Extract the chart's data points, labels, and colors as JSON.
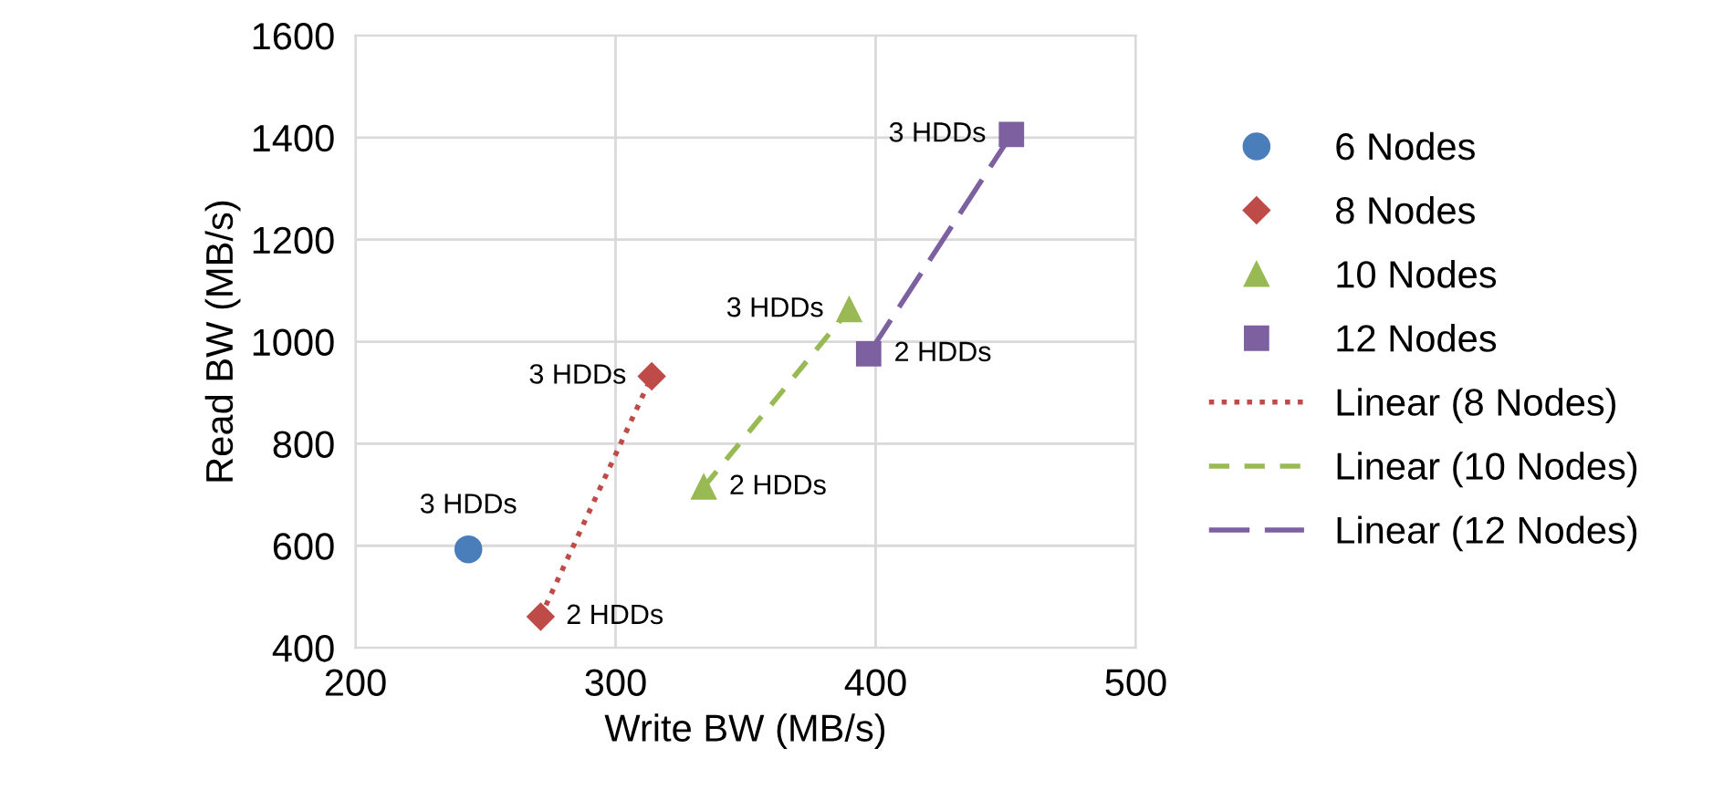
{
  "chart_data": {
    "type": "scatter",
    "xlabel": "Write BW (MB/s)",
    "ylabel": "Read BW (MB/s)",
    "xlim": [
      200,
      500
    ],
    "xticks": [
      200,
      300,
      400,
      500
    ],
    "ylim": [
      400,
      1600
    ],
    "yticks": [
      400,
      600,
      800,
      1000,
      1200,
      1400,
      1600
    ],
    "grid": true,
    "legend": "right",
    "series": [
      {
        "name": "6 Nodes",
        "color": "#4a7ebb",
        "marker": "circle",
        "x": [
          243.4
        ],
        "values": [
          593
        ]
      },
      {
        "name": "8 Nodes",
        "color": "#be4b48",
        "marker": "diamond",
        "x": [
          271.2,
          313.9
        ],
        "values": [
          461,
          932
        ]
      },
      {
        "name": "10 Nodes",
        "color": "#98b954",
        "marker": "triangle",
        "x": [
          333.9,
          389.8
        ],
        "values": [
          715,
          1063
        ]
      },
      {
        "name": "12 Nodes",
        "color": "#7d60a0",
        "marker": "square",
        "x": [
          397.3,
          452.2
        ],
        "values": [
          976,
          1406
        ]
      },
      {
        "name": "Linear (8 Nodes)",
        "type": "line",
        "color": "#be4b48",
        "line_style": "dotted",
        "marker": "none",
        "x": [
          271.2,
          313.9
        ],
        "values": [
          461,
          932
        ]
      },
      {
        "name": "Linear (10 Nodes)",
        "type": "line",
        "color": "#98b954",
        "line_style": "dashed",
        "marker": "none",
        "x": [
          333.9,
          389.8
        ],
        "values": [
          715,
          1063
        ]
      },
      {
        "name": "Linear (12 Nodes)",
        "type": "line",
        "color": "#7d60a0",
        "line_style": "longdash",
        "marker": "none",
        "x": [
          397.3,
          452.2
        ],
        "values": [
          976,
          1406
        ]
      }
    ],
    "annotations": [
      {
        "text": "3 HDDs",
        "x": 243.4,
        "y": 593
      },
      {
        "text": "2 HDDs",
        "x": 271.2,
        "y": 461
      },
      {
        "text": "3 HDDs",
        "x": 313.9,
        "y": 932
      },
      {
        "text": "2 HDDs",
        "x": 333.9,
        "y": 715
      },
      {
        "text": "3 HDDs",
        "x": 389.8,
        "y": 1063
      },
      {
        "text": "2 HDDs",
        "x": 397.3,
        "y": 976
      },
      {
        "text": "3 HDDs",
        "x": 452.2,
        "y": 1406
      }
    ]
  }
}
